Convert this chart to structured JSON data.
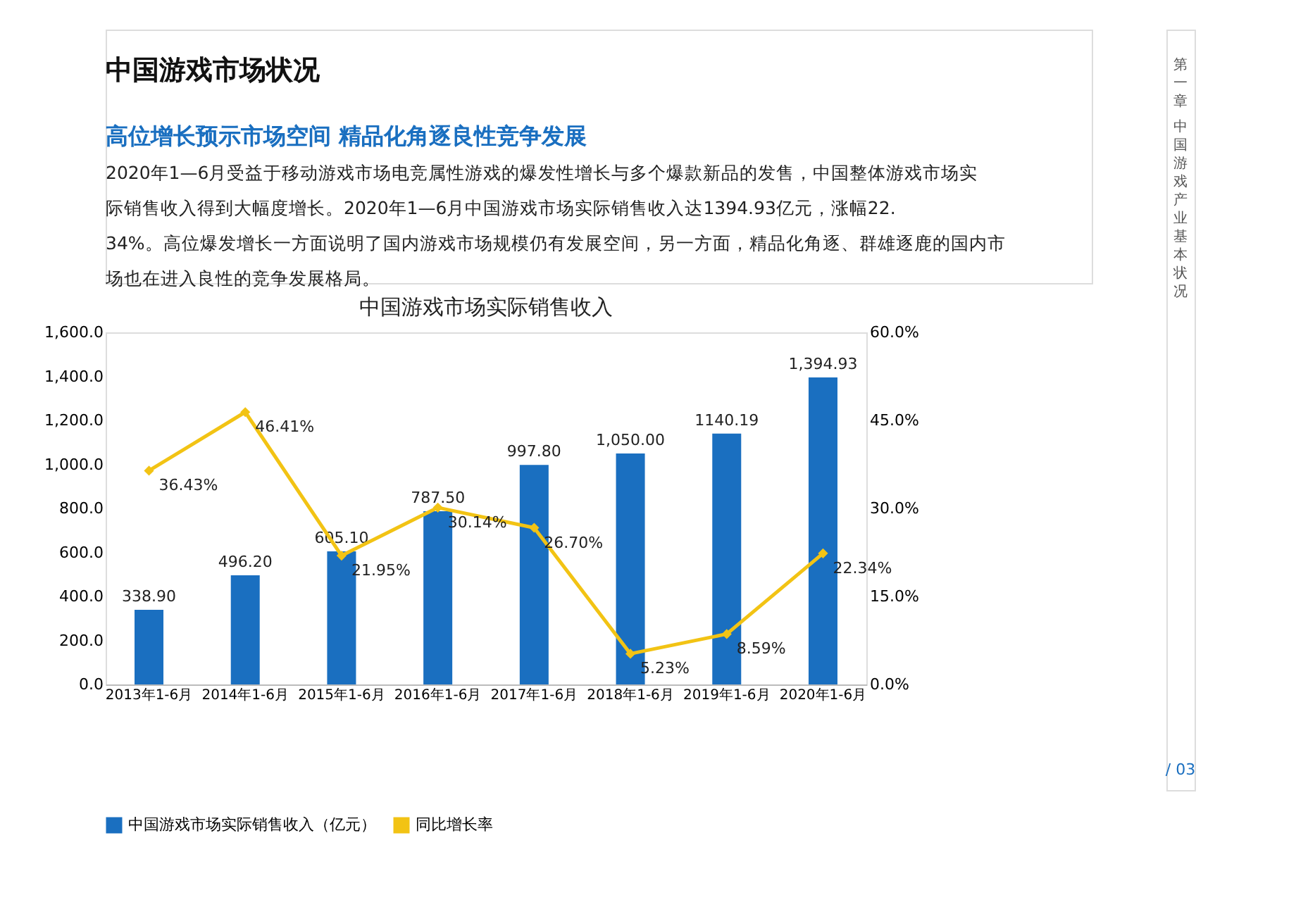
{
  "chart_data": {
    "type": "bar",
    "title": "中国游戏市场实际销售收入",
    "categories": [
      "2013年1-6月",
      "2014年1-6月",
      "2015年1-6月",
      "2016年1-6月",
      "2017年1-6月",
      "2018年1-6月",
      "2019年1-6月",
      "2020年1-6月"
    ],
    "series": [
      {
        "name": "中国游戏市场实际销售收入（亿元）",
        "color": "#1a6fc0",
        "values": [
          338.9,
          496.2,
          605.1,
          787.5,
          997.8,
          1050.0,
          1140.19,
          1394.93
        ],
        "value_labels": [
          "338.90",
          "496.20",
          "605.10",
          "787.50",
          "997.80",
          "1,050.00",
          "1140.19",
          "1,394.93"
        ]
      },
      {
        "name": "同比增长率",
        "type": "line",
        "axis": "y2",
        "color": "#f2c314",
        "marker": "diamond",
        "values": [
          36.43,
          46.41,
          21.95,
          30.14,
          26.7,
          5.23,
          8.59,
          22.34
        ],
        "value_labels": [
          "36.43%",
          "46.41%",
          "21.95%",
          "30.14%",
          "26.70%",
          "5.23%",
          "8.59%",
          "22.34%"
        ]
      }
    ],
    "ylim": [
      0,
      1600
    ],
    "yticks": [
      {
        "value": 0,
        "label": "0.0"
      },
      {
        "value": 200,
        "label": "200.0"
      },
      {
        "value": 400,
        "label": "400.0"
      },
      {
        "value": 600,
        "label": "600.0"
      },
      {
        "value": 800,
        "label": "800.0"
      },
      {
        "value": 1000,
        "label": "1,000.0"
      },
      {
        "value": 1200,
        "label": "1,200.0"
      },
      {
        "value": 1400,
        "label": "1,400.0"
      },
      {
        "value": 1600,
        "label": "1,600.0"
      }
    ],
    "y2lim": [
      0,
      60
    ],
    "y2ticks": [
      {
        "value": 0,
        "label": "0.0%"
      },
      {
        "value": 15,
        "label": "15.0%"
      },
      {
        "value": 30,
        "label": "30.0%"
      },
      {
        "value": 45,
        "label": "45.0%"
      },
      {
        "value": 60,
        "label": "60.0%"
      }
    ],
    "legend": "bottom",
    "grid": false,
    "annotations": [
      "中国游戏市场状况",
      "高位增长预示市场空间  精品化角逐良性竞争发展",
      "2020年1—6月受益于移动游戏市场电竞属性游戏的爆发性增长与多个爆款新品的发售，中国整体游戏市场实际销售收入得到大幅度增长。2020年1—6月中国游戏市场实际销售收入达1394.93亿元，涨幅22.34%。高位爆发增长一方面说明了国内游戏市场规模仍有发展空间，另一方面，精品化角逐、群雄逐鹿的国内市场也在进入良性的竞争发展格局。",
      "第一章",
      "中国游戏产业基本状况",
      "/ 03"
    ]
  }
}
